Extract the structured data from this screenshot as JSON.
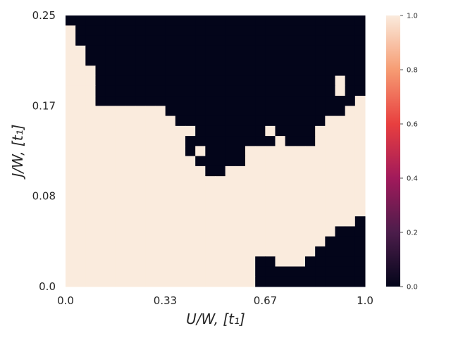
{
  "chart_data": {
    "type": "heatmap",
    "title": "",
    "xlabel": "U/W, [t1]",
    "ylabel": "J/W, [t1]",
    "x_range": [
      0,
      1
    ],
    "y_range": [
      0,
      0.25
    ],
    "x_tick_values": [
      0,
      0.333,
      0.667,
      1
    ],
    "x_tick_labels": [
      "0.0",
      "0.33",
      "0.67",
      "1.0"
    ],
    "y_tick_values": [
      0,
      0.0833,
      0.1667,
      0.25
    ],
    "y_tick_labels": [
      "0.0",
      "0.08",
      "0.17",
      "0.25"
    ],
    "grid": false,
    "value_range": [
      0,
      1
    ],
    "colormap": "rocket",
    "colormap_stops": [
      "#03051a",
      "#4c1d4b",
      "#a11a5b",
      "#e83f3f",
      "#f69c73",
      "#faebdd"
    ],
    "colorbar": {
      "ticks": [
        0,
        0.2,
        0.4,
        0.6,
        0.8,
        1
      ],
      "tick_labels": [
        "0.0",
        "0.2",
        "0.4",
        "0.6",
        "0.8",
        "1.0"
      ]
    },
    "grid_size": {
      "cols": 30,
      "rows": 27
    },
    "dark_value": 0,
    "light_value": 1,
    "upper_dark_region_rows_from_top": [
      [
        0,
        30
      ],
      [
        1,
        30
      ],
      [
        1,
        30
      ],
      [
        2,
        30
      ],
      [
        2,
        30
      ],
      [
        3,
        30
      ],
      [
        3,
        30
      ],
      [
        3,
        27
      ],
      [
        3,
        27
      ],
      [
        10,
        27
      ],
      [
        11,
        26
      ],
      [
        13,
        26
      ],
      [
        13,
        25
      ],
      [
        12,
        18
      ],
      [
        13,
        17
      ],
      [
        14,
        16
      ]
    ],
    "upper_dark_holes": [
      [
        6,
        27
      ],
      [
        11,
        20
      ],
      [
        12,
        19
      ],
      [
        12,
        20
      ]
    ],
    "upper_dark_extra": [
      [
        7,
        28
      ],
      [
        8,
        27
      ],
      [
        9,
        27
      ],
      [
        10,
        25
      ],
      [
        11,
        23
      ],
      [
        11,
        24
      ],
      [
        12,
        22
      ],
      [
        12,
        23
      ]
    ],
    "lower_dark_region_rows_from_top": [
      [
        23,
        30
      ],
      [
        24,
        30
      ],
      [
        25,
        30
      ],
      [
        26,
        30
      ],
      [
        27,
        30
      ],
      [
        28,
        30
      ],
      [
        29,
        30
      ],
      [
        30,
        30
      ],
      [
        31,
        30
      ],
      [
        32,
        30
      ],
      [
        33,
        30
      ],
      [
        34,
        30
      ]
    ],
    "lower_dark_start_cols": [
      29,
      28,
      27,
      26,
      25,
      24,
      19,
      19,
      19,
      19,
      19,
      19
    ]
  }
}
